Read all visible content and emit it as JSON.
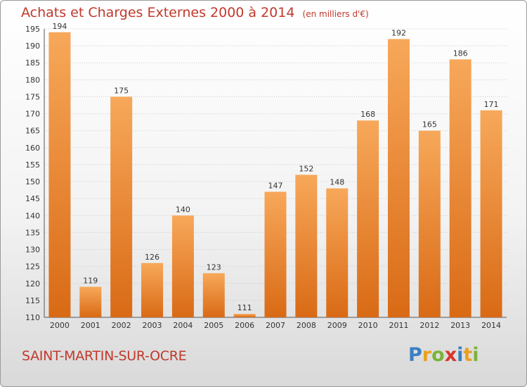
{
  "header": {
    "title": "Achats et Charges Externes 2000 à 2014",
    "unit": "(en milliers d'€)"
  },
  "footer": {
    "commune": "SAINT-MARTIN-SUR-OCRE",
    "logo_letters": [
      "P",
      "r",
      "o",
      "x",
      "i",
      "t",
      "i"
    ]
  },
  "colors": {
    "title": "#c0392b",
    "bar_light": "#f7a85a",
    "bar_dark": "#d96a15"
  },
  "chart_data": {
    "type": "bar",
    "title": "Achats et Charges Externes 2000 à 2014",
    "categories": [
      "2000",
      "2001",
      "2002",
      "2003",
      "2004",
      "2005",
      "2006",
      "2007",
      "2008",
      "2009",
      "2010",
      "2011",
      "2012",
      "2013",
      "2014"
    ],
    "values": [
      194,
      119,
      175,
      126,
      140,
      123,
      111,
      147,
      152,
      148,
      168,
      192,
      165,
      186,
      171
    ],
    "ylim": [
      110,
      195
    ],
    "yticks": [
      110,
      115,
      120,
      125,
      130,
      135,
      140,
      145,
      150,
      155,
      160,
      165,
      170,
      175,
      180,
      185,
      190,
      195
    ],
    "grid": true,
    "xlabel": "",
    "ylabel": ""
  }
}
